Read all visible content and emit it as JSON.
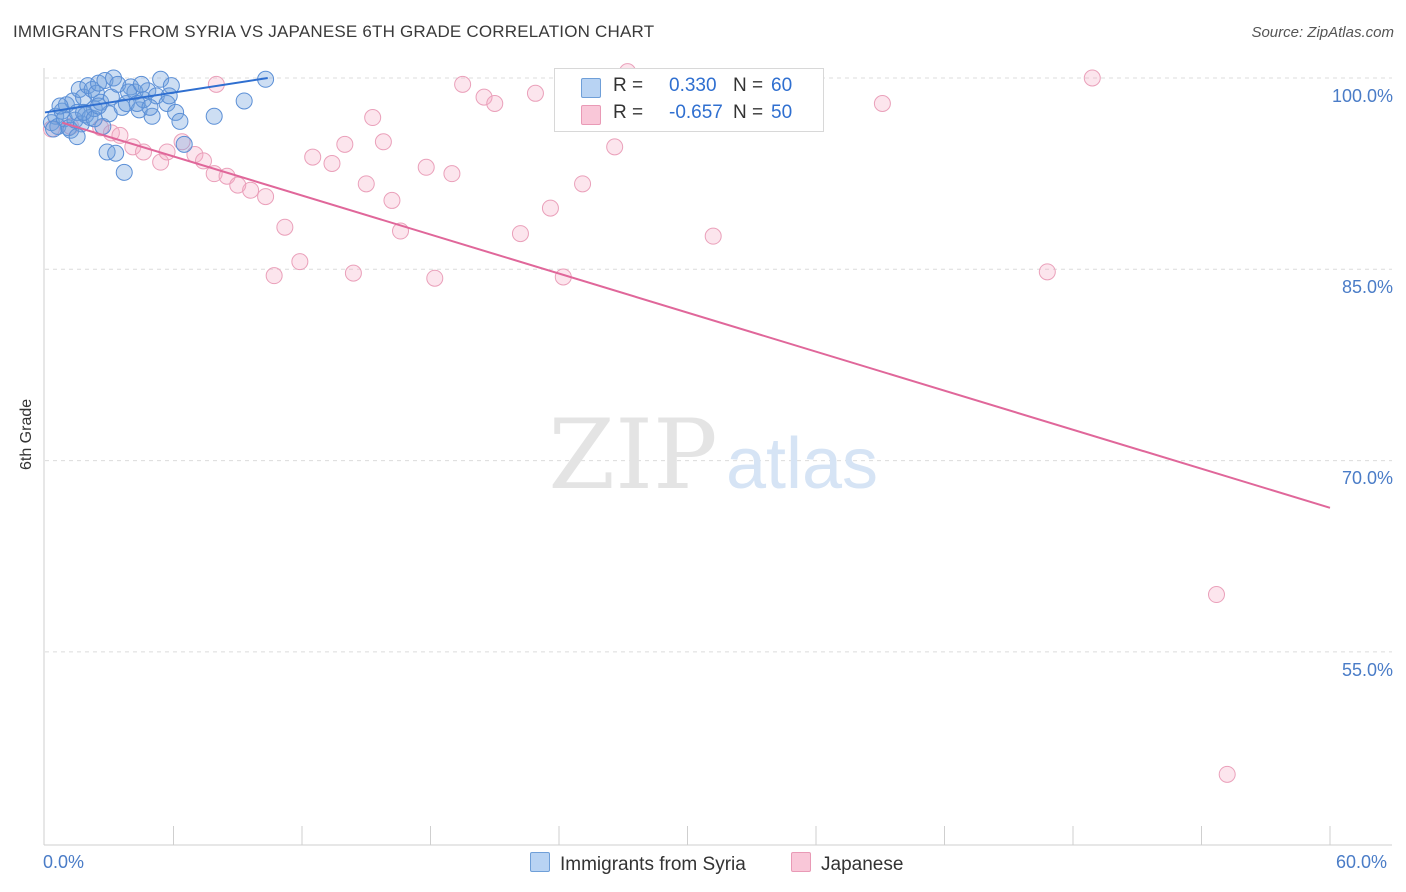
{
  "title": "IMMIGRANTS FROM SYRIA VS JAPANESE 6TH GRADE CORRELATION CHART",
  "source": "Source: ZipAtlas.com",
  "watermark": {
    "zip": "ZIP",
    "atlas": "atlas"
  },
  "colors": {
    "blue": "#5b9bd5",
    "blue_line": "#2f6fd0",
    "pink": "#f0a0bc",
    "pink_line": "#e0679a",
    "tick_text": "#4a7cc7"
  },
  "stats": [
    {
      "r_label": "R =",
      "r_value": "0.330",
      "n_label": "N =",
      "n_value": "60"
    },
    {
      "r_label": "R =",
      "r_value": "-0.657",
      "n_label": "N =",
      "n_value": "50"
    }
  ],
  "legend": [
    {
      "label": "Immigrants from Syria"
    },
    {
      "label": "Japanese"
    }
  ],
  "chart_data": {
    "type": "scatter",
    "title": "IMMIGRANTS FROM SYRIA VS JAPANESE 6TH GRADE CORRELATION CHART",
    "xlabel": "",
    "ylabel": "6th Grade",
    "xlim": [
      0,
      60
    ],
    "ylim": [
      40,
      102
    ],
    "x_tick_labels": [
      "0.0%",
      "60.0%"
    ],
    "y_ticks": [
      100,
      85,
      70,
      55
    ],
    "y_tick_labels": [
      "100.0%",
      "85.0%",
      "70.0%",
      "55.0%"
    ],
    "series": [
      {
        "name": "Immigrants from Syria",
        "r": 0.33,
        "n": 60,
        "trend": [
          [
            0.0,
            97.3
          ],
          [
            10.4,
            100.0
          ]
        ],
        "points": [
          [
            0.3,
            96.5
          ],
          [
            0.5,
            97.0
          ],
          [
            0.6,
            96.2
          ],
          [
            0.8,
            97.4
          ],
          [
            0.9,
            96.8
          ],
          [
            1.0,
            97.9
          ],
          [
            1.1,
            96.1
          ],
          [
            1.2,
            95.9
          ],
          [
            1.3,
            98.2
          ],
          [
            1.4,
            96.7
          ],
          [
            1.5,
            97.3
          ],
          [
            1.6,
            99.1
          ],
          [
            1.7,
            96.4
          ],
          [
            1.8,
            98.5
          ],
          [
            1.9,
            97.1
          ],
          [
            2.0,
            99.4
          ],
          [
            2.1,
            96.9
          ],
          [
            2.2,
            99.1
          ],
          [
            2.3,
            97.6
          ],
          [
            2.4,
            98.8
          ],
          [
            2.5,
            99.6
          ],
          [
            2.6,
            98.1
          ],
          [
            2.7,
            96.2
          ],
          [
            2.8,
            99.8
          ],
          [
            3.0,
            97.2
          ],
          [
            3.1,
            98.5
          ],
          [
            3.2,
            100.0
          ],
          [
            3.4,
            99.5
          ],
          [
            3.6,
            97.7
          ],
          [
            3.8,
            98.0
          ],
          [
            4.0,
            99.3
          ],
          [
            4.2,
            98.9
          ],
          [
            4.4,
            97.5
          ],
          [
            4.6,
            98.3
          ],
          [
            4.8,
            99.0
          ],
          [
            5.0,
            97.0
          ],
          [
            5.2,
            98.6
          ],
          [
            5.4,
            99.9
          ],
          [
            5.7,
            98.0
          ],
          [
            5.9,
            99.4
          ],
          [
            6.1,
            97.3
          ],
          [
            6.3,
            96.6
          ],
          [
            0.4,
            96.0
          ],
          [
            0.7,
            97.8
          ],
          [
            1.5,
            95.4
          ],
          [
            1.8,
            97.3
          ],
          [
            2.3,
            96.8
          ],
          [
            2.5,
            97.8
          ],
          [
            2.9,
            94.2
          ],
          [
            3.3,
            94.1
          ],
          [
            3.7,
            92.6
          ],
          [
            3.9,
            98.9
          ],
          [
            4.3,
            98.0
          ],
          [
            4.9,
            97.7
          ],
          [
            5.8,
            98.6
          ],
          [
            6.5,
            94.8
          ],
          [
            7.9,
            97.0
          ],
          [
            9.3,
            98.2
          ],
          [
            10.3,
            99.9
          ],
          [
            4.5,
            99.5
          ]
        ]
      },
      {
        "name": "Japanese",
        "r": -0.657,
        "n": 50,
        "trend": [
          [
            0.8,
            96.5
          ],
          [
            60.0,
            66.3
          ]
        ],
        "points": [
          [
            0.3,
            96.0
          ],
          [
            1.2,
            96.2
          ],
          [
            2.6,
            96.1
          ],
          [
            3.1,
            95.7
          ],
          [
            3.5,
            95.5
          ],
          [
            4.1,
            94.6
          ],
          [
            4.6,
            94.2
          ],
          [
            5.4,
            93.4
          ],
          [
            5.7,
            94.2
          ],
          [
            6.4,
            95.0
          ],
          [
            7.0,
            94.0
          ],
          [
            7.4,
            93.5
          ],
          [
            7.9,
            92.5
          ],
          [
            8.5,
            92.3
          ],
          [
            9.0,
            91.6
          ],
          [
            9.6,
            91.2
          ],
          [
            10.3,
            90.7
          ],
          [
            10.7,
            84.5
          ],
          [
            11.2,
            88.3
          ],
          [
            11.9,
            85.6
          ],
          [
            12.5,
            93.8
          ],
          [
            13.4,
            93.3
          ],
          [
            14.0,
            94.8
          ],
          [
            14.4,
            84.7
          ],
          [
            15.0,
            91.7
          ],
          [
            15.8,
            95.0
          ],
          [
            16.2,
            90.4
          ],
          [
            16.6,
            88.0
          ],
          [
            17.8,
            93.0
          ],
          [
            18.2,
            84.3
          ],
          [
            19.0,
            92.5
          ],
          [
            19.5,
            99.5
          ],
          [
            20.5,
            98.5
          ],
          [
            21.0,
            98.0
          ],
          [
            22.2,
            87.8
          ],
          [
            22.9,
            98.8
          ],
          [
            23.6,
            89.8
          ],
          [
            24.2,
            84.4
          ],
          [
            25.1,
            91.7
          ],
          [
            26.6,
            94.6
          ],
          [
            27.2,
            100.5
          ],
          [
            30.0,
            97.0
          ],
          [
            31.2,
            87.6
          ],
          [
            39.1,
            98.0
          ],
          [
            46.8,
            84.8
          ],
          [
            48.9,
            100.0
          ],
          [
            54.7,
            59.5
          ],
          [
            55.2,
            45.4
          ],
          [
            8.0,
            99.5
          ],
          [
            15.3,
            96.9
          ]
        ]
      }
    ]
  }
}
